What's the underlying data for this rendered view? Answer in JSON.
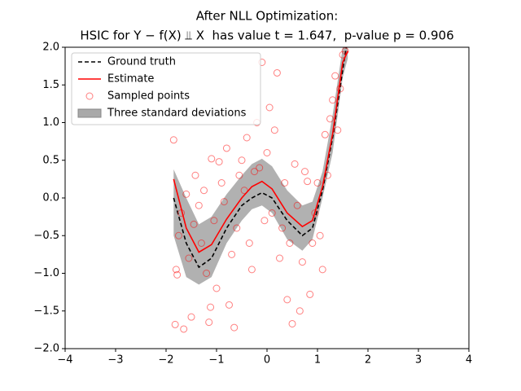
{
  "chart_data": {
    "type": "line",
    "title": "After NLL Optimization:",
    "subtitle": "HSIC for Y − f(X) ⫫ X  has value t = 1.647,  p-value p = 0.906",
    "xlim": [
      -4,
      4
    ],
    "ylim": [
      -2,
      2
    ],
    "xticks": [
      {
        "value": -4,
        "label": "−4"
      },
      {
        "value": -3,
        "label": "−3"
      },
      {
        "value": -2,
        "label": "−2"
      },
      {
        "value": -1,
        "label": "−1"
      },
      0,
      1,
      2,
      3,
      4
    ],
    "yticks": [
      {
        "value": -2,
        "label": "−2.0"
      },
      {
        "value": -1.5,
        "label": "−1.5"
      },
      {
        "value": -1,
        "label": "−1.0"
      },
      {
        "value": -0.5,
        "label": "−0.5"
      },
      {
        "value": 0,
        "label": "0.0"
      },
      0.5,
      {
        "value": 1,
        "label": "1.0"
      },
      1.5,
      {
        "value": 2,
        "label": "2.0"
      }
    ],
    "grid": false,
    "legend": "upper left",
    "series": [
      {
        "name": "Three standard deviations",
        "type": "area",
        "color": "#a9a9a9",
        "x": [
          -1.85,
          -1.6,
          -1.35,
          -1.1,
          -0.8,
          -0.5,
          -0.3,
          -0.1,
          0.1,
          0.4,
          0.7,
          0.9,
          1.1,
          1.3,
          1.5,
          1.6
        ],
        "lower": [
          -0.5,
          -1.05,
          -1.15,
          -1.05,
          -0.6,
          -0.3,
          -0.15,
          -0.1,
          -0.2,
          -0.55,
          -0.7,
          -0.55,
          0.0,
          0.6,
          1.6,
          1.85
        ],
        "upper": [
          0.38,
          0.0,
          -0.35,
          -0.25,
          0.05,
          0.3,
          0.45,
          0.52,
          0.42,
          0.1,
          -0.1,
          -0.05,
          0.35,
          1.1,
          2.0,
          2.1
        ]
      },
      {
        "name": "Ground truth",
        "type": "line",
        "color": "#000000",
        "dash": true,
        "x": [
          -1.85,
          -1.6,
          -1.35,
          -1.1,
          -0.8,
          -0.5,
          -0.3,
          -0.1,
          0.1,
          0.4,
          0.7,
          0.9,
          1.1,
          1.3,
          1.5,
          1.57
        ],
        "values": [
          0.0,
          -0.6,
          -0.92,
          -0.8,
          -0.4,
          -0.1,
          0.0,
          0.07,
          0.0,
          -0.3,
          -0.5,
          -0.4,
          0.1,
          0.8,
          1.7,
          2.0
        ]
      },
      {
        "name": "Estimate",
        "type": "line",
        "color": "#ff0000",
        "x": [
          -1.85,
          -1.6,
          -1.35,
          -1.1,
          -0.8,
          -0.5,
          -0.3,
          -0.1,
          0.1,
          0.4,
          0.7,
          0.9,
          1.1,
          1.3,
          1.5,
          1.6
        ],
        "values": [
          0.25,
          -0.4,
          -0.72,
          -0.62,
          -0.28,
          0.0,
          0.15,
          0.22,
          0.12,
          -0.2,
          -0.38,
          -0.3,
          0.15,
          0.85,
          1.8,
          1.95
        ]
      },
      {
        "name": "Sampled points",
        "type": "scatter",
        "color": "#ff0000",
        "x": [
          -1.85,
          -1.82,
          -1.8,
          -1.78,
          -1.75,
          -1.7,
          -1.65,
          -1.6,
          -1.55,
          -1.5,
          -1.45,
          -1.42,
          -1.35,
          -1.3,
          -1.25,
          -1.2,
          -1.15,
          -1.12,
          -1.1,
          -1.05,
          -1.0,
          -0.95,
          -0.9,
          -0.85,
          -0.8,
          -0.75,
          -0.7,
          -0.65,
          -0.6,
          -0.55,
          -0.5,
          -0.45,
          -0.4,
          -0.35,
          -0.3,
          -0.25,
          -0.2,
          -0.15,
          -0.1,
          -0.05,
          0.0,
          0.05,
          0.1,
          0.15,
          0.2,
          0.25,
          0.3,
          0.35,
          0.4,
          0.45,
          0.5,
          0.55,
          0.6,
          0.65,
          0.7,
          0.75,
          0.8,
          0.85,
          0.9,
          0.95,
          1.0,
          1.05,
          1.1,
          1.15,
          1.2,
          1.25,
          1.3,
          1.35,
          1.4,
          1.45,
          1.5,
          1.55
        ],
        "values": [
          0.77,
          -1.68,
          -0.95,
          -1.02,
          -0.5,
          -0.2,
          -1.74,
          0.05,
          -0.8,
          -1.58,
          -0.35,
          0.3,
          -0.1,
          -0.6,
          0.1,
          -1.0,
          -1.65,
          -1.45,
          0.52,
          -0.3,
          -1.2,
          0.48,
          0.2,
          -0.05,
          0.66,
          -1.42,
          -0.75,
          -1.72,
          -0.4,
          0.3,
          0.5,
          0.1,
          0.8,
          -0.6,
          -0.95,
          0.35,
          1.0,
          0.4,
          1.8,
          -0.3,
          0.6,
          1.2,
          -0.2,
          0.9,
          1.66,
          -0.8,
          -0.4,
          0.2,
          -1.35,
          -0.6,
          -1.67,
          0.45,
          -0.1,
          -1.5,
          -0.85,
          0.35,
          0.22,
          -1.28,
          -0.6,
          -0.2,
          0.2,
          -0.5,
          -0.95,
          0.84,
          0.3,
          1.05,
          1.3,
          1.62,
          0.9,
          1.45,
          1.9,
          1.95
        ]
      }
    ]
  }
}
